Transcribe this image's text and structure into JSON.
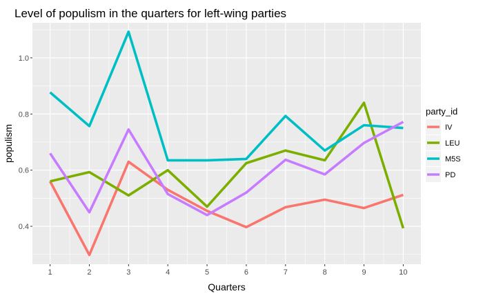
{
  "chart_data": {
    "type": "line",
    "title": "Level of populism in the quarters for left-wing parties",
    "xlabel": "Quarters",
    "ylabel": "populism",
    "x": [
      1,
      2,
      3,
      4,
      5,
      6,
      7,
      8,
      9,
      10
    ],
    "xlim": [
      0.55,
      10.45
    ],
    "ylim": [
      0.265,
      1.125
    ],
    "yticks": [
      0.4,
      0.6,
      0.8,
      1.0
    ],
    "ytick_labels": [
      "0.4",
      "0.6",
      "0.8",
      "1.0"
    ],
    "xtick_labels": [
      "1",
      "2",
      "3",
      "4",
      "5",
      "6",
      "7",
      "8",
      "9",
      "10"
    ],
    "grid": true,
    "legend": {
      "title": "party_id",
      "position": "right"
    },
    "series": [
      {
        "name": "IV",
        "color": "#F8766D",
        "values": [
          0.56,
          0.298,
          0.63,
          0.53,
          0.455,
          0.397,
          0.468,
          0.495,
          0.465,
          0.512
        ]
      },
      {
        "name": "LEU",
        "color": "#7CAE00",
        "values": [
          0.56,
          0.593,
          0.51,
          0.6,
          0.47,
          0.625,
          0.67,
          0.635,
          0.84,
          0.393
        ]
      },
      {
        "name": "M5S",
        "color": "#00BFC4",
        "values": [
          0.877,
          0.757,
          1.093,
          0.635,
          0.635,
          0.64,
          0.793,
          0.67,
          0.76,
          0.75
        ]
      },
      {
        "name": "PD",
        "color": "#C77CFF",
        "values": [
          0.66,
          0.45,
          0.745,
          0.515,
          0.44,
          0.52,
          0.637,
          0.585,
          0.697,
          0.772
        ]
      }
    ]
  }
}
